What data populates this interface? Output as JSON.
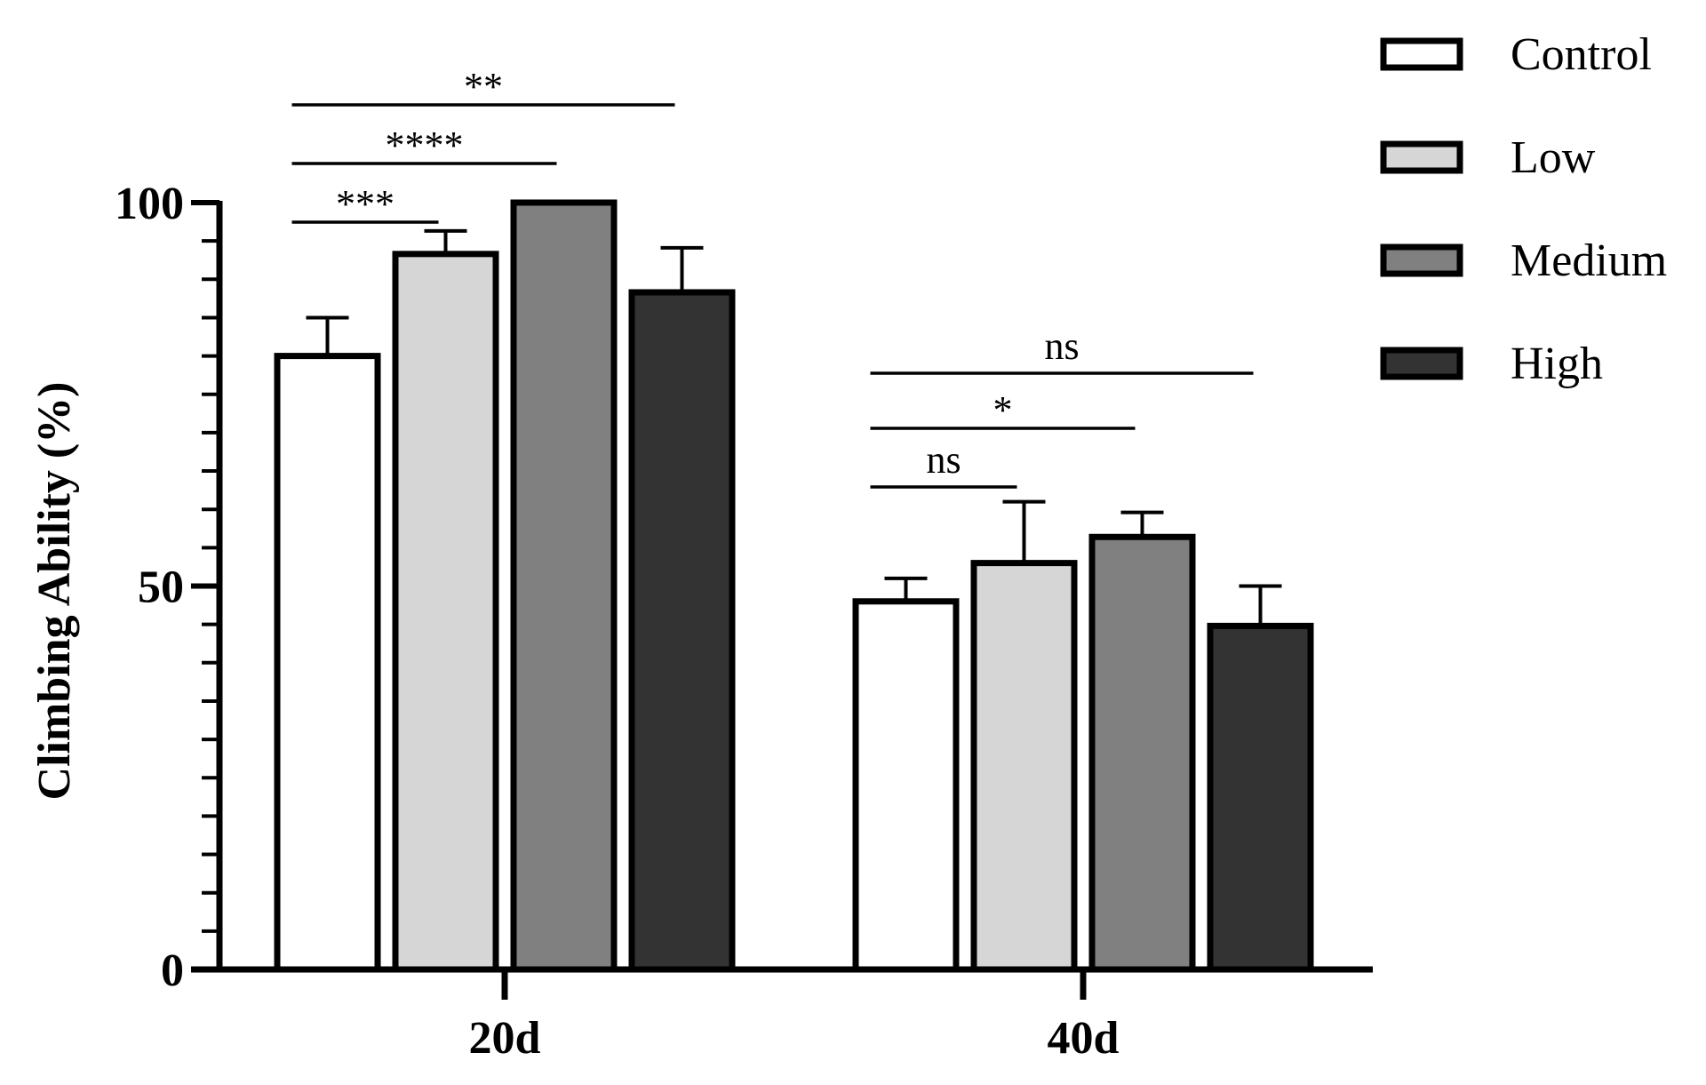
{
  "chart_data": {
    "type": "bar",
    "ylabel": "Climbing Ability (%)",
    "xlabel": "",
    "ylim": [
      0,
      100
    ],
    "yticks": [
      "0",
      "50",
      "100"
    ],
    "categories": [
      "20d",
      "40d"
    ],
    "series": [
      {
        "name": "Control",
        "values": [
          80,
          48
        ],
        "errors": [
          5,
          3
        ],
        "color": "#ffffff"
      },
      {
        "name": "Low",
        "values": [
          93.3,
          53
        ],
        "errors": [
          3,
          8
        ],
        "color": "#d6d6d6"
      },
      {
        "name": "Medium",
        "values": [
          100,
          56.4
        ],
        "errors": [
          0,
          3.2
        ],
        "color": "#808080"
      },
      {
        "name": "High",
        "values": [
          88.3,
          44.8
        ],
        "errors": [
          5.8,
          5.2
        ],
        "color": "#333333"
      }
    ],
    "legend_position": "top-right",
    "significance": [
      {
        "category": "20d",
        "from": "Control",
        "to": "Low",
        "label": "***"
      },
      {
        "category": "20d",
        "from": "Control",
        "to": "Medium",
        "label": "****"
      },
      {
        "category": "20d",
        "from": "Control",
        "to": "High",
        "label": "**"
      },
      {
        "category": "40d",
        "from": "Control",
        "to": "Low",
        "label": "ns"
      },
      {
        "category": "40d",
        "from": "Control",
        "to": "Medium",
        "label": "*"
      },
      {
        "category": "40d",
        "from": "Control",
        "to": "High",
        "label": "ns"
      }
    ]
  }
}
